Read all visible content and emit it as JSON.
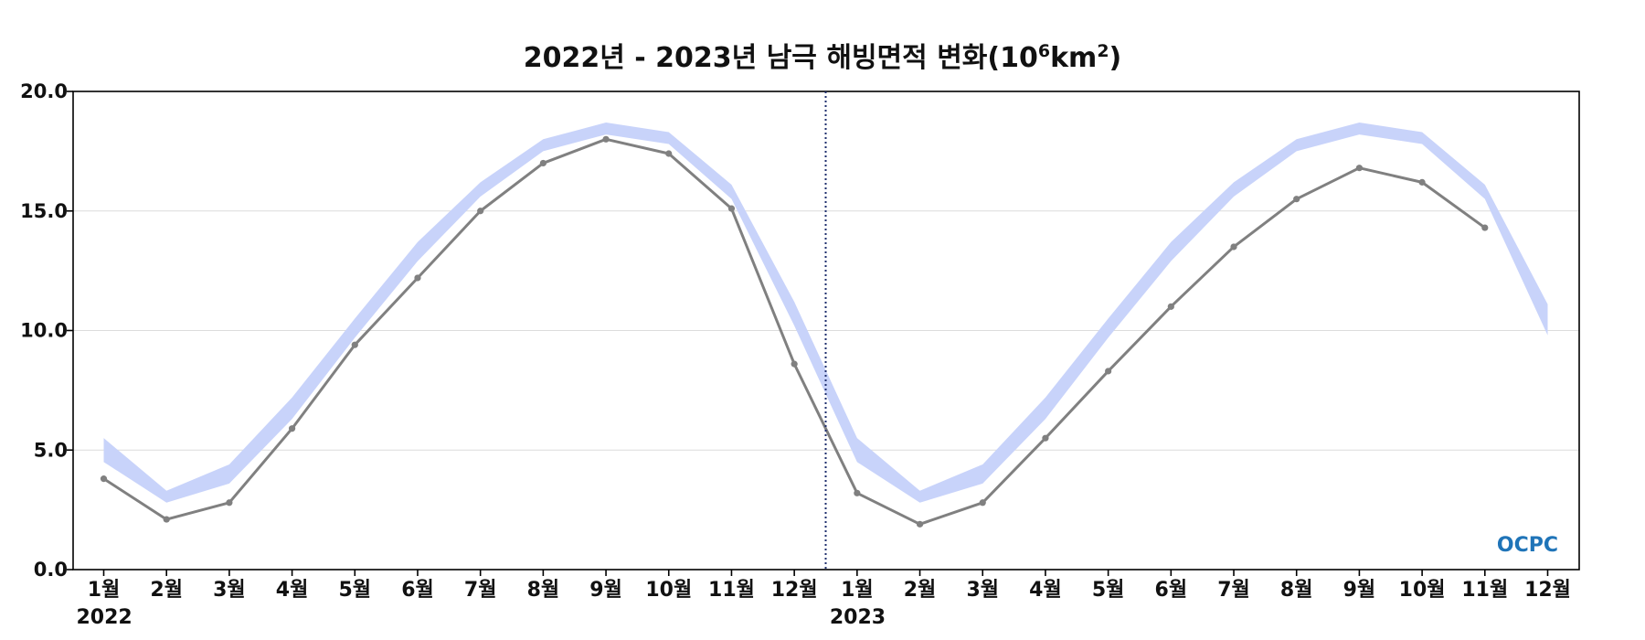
{
  "chart_data": {
    "type": "line",
    "title_prefix": "2022년 - 2023년 남극 해빙면적 변화(10",
    "title_exp1": "6",
    "title_mid": "km",
    "title_exp2": "2",
    "title_suffix": ")",
    "ylim": [
      0,
      20
    ],
    "yticks": [
      "0.0",
      "5.0",
      "10.0",
      "15.0",
      "20.0"
    ],
    "ytick_values": [
      0,
      5,
      10,
      15,
      20
    ],
    "grid": "horizontal",
    "categories": [
      "1월",
      "2월",
      "3월",
      "4월",
      "5월",
      "6월",
      "7월",
      "8월",
      "9월",
      "10월",
      "11월",
      "12월",
      "1월",
      "2월",
      "3월",
      "4월",
      "5월",
      "6월",
      "7월",
      "8월",
      "9월",
      "10월",
      "11월",
      "12월"
    ],
    "year_labels": [
      {
        "text": "2022",
        "at_index": 0
      },
      {
        "text": "2023",
        "at_index": 12
      }
    ],
    "divider_between": [
      11,
      12
    ],
    "series": [
      {
        "type": "line",
        "color": "#808080",
        "values": [
          3.8,
          2.1,
          2.8,
          5.9,
          9.4,
          12.2,
          15.0,
          17.0,
          18.0,
          17.4,
          15.1,
          8.6,
          3.2,
          1.9,
          2.8,
          5.5,
          8.3,
          11.0,
          13.5,
          15.5,
          16.8,
          16.2,
          14.3,
          null
        ]
      },
      {
        "type": "band",
        "color": "#c8d3fa",
        "lower": [
          4.5,
          2.8,
          3.6,
          6.3,
          9.7,
          12.9,
          15.6,
          17.5,
          18.2,
          17.8,
          15.5,
          10.2,
          4.5,
          2.8,
          3.6,
          6.3,
          9.7,
          12.9,
          15.6,
          17.5,
          18.2,
          17.8,
          15.5,
          9.8
        ],
        "upper": [
          5.5,
          3.3,
          4.4,
          7.2,
          10.5,
          13.7,
          16.2,
          18.0,
          18.7,
          18.3,
          16.1,
          11.2,
          5.5,
          3.3,
          4.4,
          7.2,
          10.5,
          13.7,
          16.2,
          18.0,
          18.7,
          18.3,
          16.1,
          11.1
        ]
      }
    ],
    "watermark": "OCPC",
    "watermark_color": "#1f74b8"
  }
}
